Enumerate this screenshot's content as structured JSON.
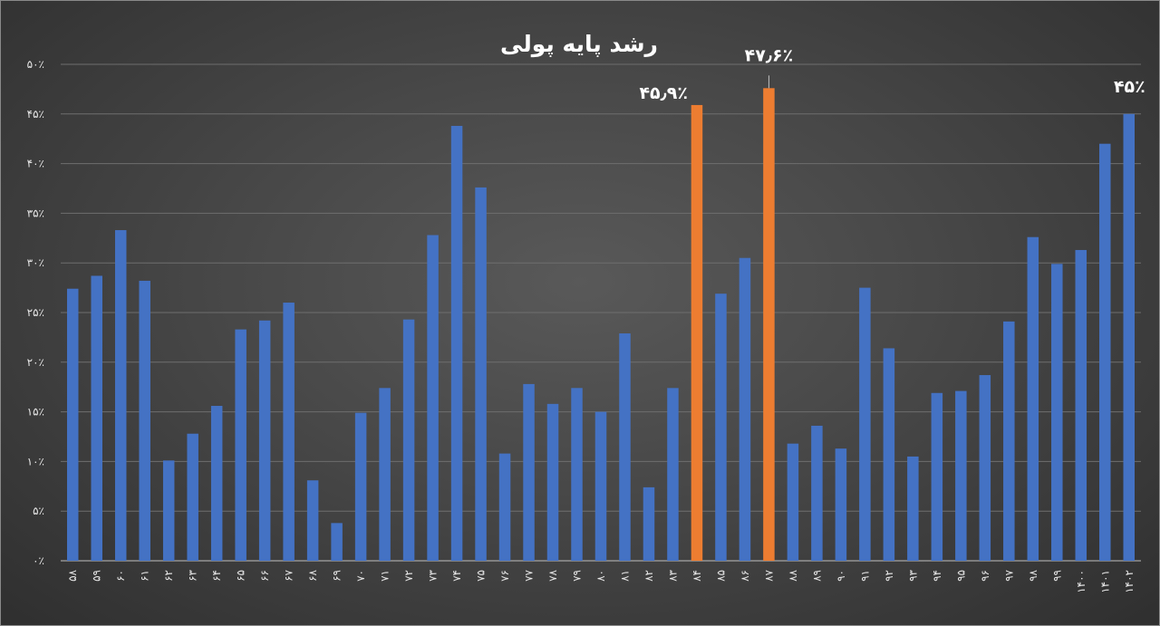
{
  "chart_data": {
    "type": "bar",
    "title": "رشد پایه پولی",
    "xlabel": "",
    "ylabel": "",
    "ylim": [
      0,
      50
    ],
    "y_ticks": [
      "۰٪",
      "۵٪",
      "۱۰٪",
      "۱۵٪",
      "۲۰٪",
      "۲۵٪",
      "۳۰٪",
      "۳۵٪",
      "۴۰٪",
      "۴۵٪",
      "۵۰٪"
    ],
    "categories": [
      "۵۸",
      "۵۹",
      "۶۰",
      "۶۱",
      "۶۲",
      "۶۳",
      "۶۴",
      "۶۵",
      "۶۶",
      "۶۷",
      "۶۸",
      "۶۹",
      "۷۰",
      "۷۱",
      "۷۲",
      "۷۳",
      "۷۴",
      "۷۵",
      "۷۶",
      "۷۷",
      "۷۸",
      "۷۹",
      "۸۰",
      "۸۱",
      "۸۲",
      "۸۳",
      "۸۴",
      "۸۵",
      "۸۶",
      "۸۷",
      "۸۸",
      "۸۹",
      "۹۰",
      "۹۱",
      "۹۲",
      "۹۳",
      "۹۴",
      "۹۵",
      "۹۶",
      "۹۷",
      "۹۸",
      "۹۹",
      "۱۴۰۰",
      "۱۴۰۱",
      "۱۴۰۲"
    ],
    "values": [
      27.4,
      28.7,
      33.3,
      28.2,
      10.1,
      12.8,
      15.6,
      23.3,
      24.2,
      26.0,
      8.1,
      3.8,
      14.9,
      17.4,
      24.3,
      32.8,
      43.8,
      37.6,
      10.8,
      17.8,
      15.8,
      17.4,
      15.0,
      22.9,
      7.4,
      17.4,
      45.9,
      26.9,
      30.5,
      47.6,
      11.8,
      13.6,
      11.3,
      27.5,
      21.4,
      10.5,
      16.9,
      17.1,
      18.7,
      24.1,
      32.6,
      29.9,
      31.3,
      42.0,
      45.0
    ],
    "highlighted_categories": [
      "۸۴",
      "۸۷"
    ],
    "annotations": [
      {
        "category": "۸۴",
        "text": "۴۵٫۹٪"
      },
      {
        "category": "۸۷",
        "text": "۴۷٫۶٪"
      },
      {
        "category": "۱۴۰۲",
        "text": "۴۵٪"
      }
    ],
    "grid": true,
    "legend": "none",
    "colors": {
      "bar": "#4472c4",
      "bar_highlight": "#ed7d31",
      "gridline": "#6e6e6e",
      "axis": "#bfbfbf",
      "text": "#ffffff"
    }
  }
}
